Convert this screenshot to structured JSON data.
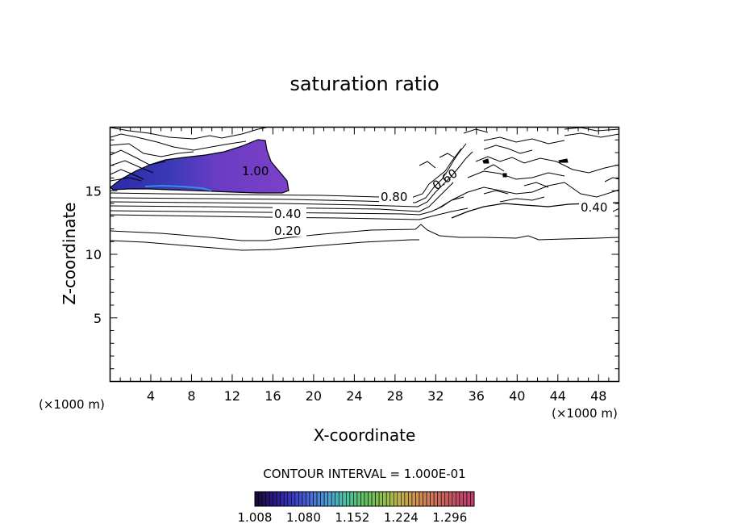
{
  "chart_data": {
    "type": "contour",
    "title": "saturation ratio",
    "xlabel": "X-coordinate",
    "ylabel": "Z-coordinate",
    "x_unit_left": "(×1000 m)",
    "x_unit_right": "(×1000 m)",
    "xlim": [
      0,
      50
    ],
    "ylim": [
      0,
      20
    ],
    "x_ticks": [
      4,
      8,
      12,
      16,
      20,
      24,
      28,
      32,
      36,
      40,
      44,
      48
    ],
    "y_ticks": [
      5,
      10,
      15
    ],
    "contour_labels": [
      "1.00",
      "0.60",
      "0.80",
      "0.40",
      "0.20",
      "0.40"
    ],
    "contour_interval_text": "CONTOUR INTERVAL = 1.000E-01",
    "colorbar": {
      "ticks": [
        "1.008",
        "1.080",
        "1.152",
        "1.224",
        "1.296"
      ],
      "min": 1.008,
      "max": 1.332,
      "colors": [
        "#1a0a3a",
        "#2a1a8a",
        "#3a3ac0",
        "#4a6ad8",
        "#4aa0d0",
        "#50c0a0",
        "#60c060",
        "#90c050",
        "#c0b050",
        "#d09050",
        "#d07060",
        "#c05060",
        "#c04070"
      ]
    },
    "supersaturated_region_color": "#7a3fc8"
  }
}
